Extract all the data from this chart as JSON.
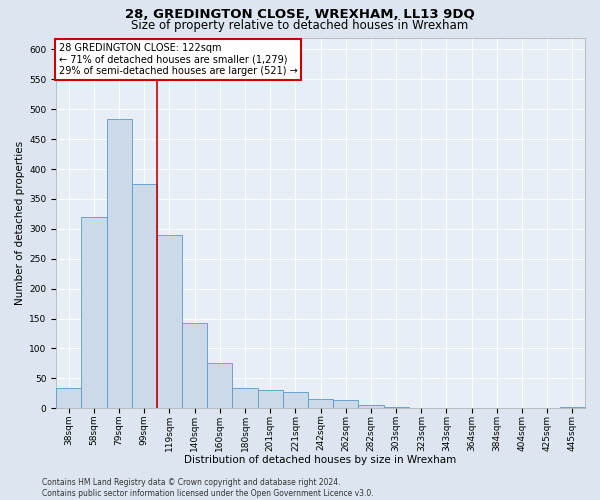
{
  "title": "28, GREDINGTON CLOSE, WREXHAM, LL13 9DQ",
  "subtitle": "Size of property relative to detached houses in Wrexham",
  "xlabel": "Distribution of detached houses by size in Wrexham",
  "ylabel": "Number of detached properties",
  "categories": [
    "38sqm",
    "58sqm",
    "79sqm",
    "99sqm",
    "119sqm",
    "140sqm",
    "160sqm",
    "180sqm",
    "201sqm",
    "221sqm",
    "242sqm",
    "262sqm",
    "282sqm",
    "303sqm",
    "323sqm",
    "343sqm",
    "364sqm",
    "384sqm",
    "404sqm",
    "425sqm",
    "445sqm"
  ],
  "values": [
    33,
    320,
    483,
    375,
    290,
    143,
    75,
    33,
    30,
    27,
    15,
    14,
    6,
    2,
    1,
    1,
    0,
    1,
    0,
    0,
    2
  ],
  "bar_color": "#ccd9e8",
  "bar_edge_color": "#5a9aca",
  "annotation_text": "28 GREDINGTON CLOSE: 122sqm\n← 71% of detached houses are smaller (1,279)\n29% of semi-detached houses are larger (521) →",
  "annotation_box_facecolor": "#ffffff",
  "annotation_box_edge_color": "#cc0000",
  "vline_color": "#cc0000",
  "footer_line1": "Contains HM Land Registry data © Crown copyright and database right 2024.",
  "footer_line2": "Contains public sector information licensed under the Open Government Licence v3.0.",
  "ylim": [
    0,
    620
  ],
  "yticks": [
    0,
    50,
    100,
    150,
    200,
    250,
    300,
    350,
    400,
    450,
    500,
    550,
    600
  ],
  "bg_color": "#dde6f0",
  "plot_bg_color": "#e8eef5",
  "grid_color": "#ffffff",
  "title_fontsize": 9.5,
  "subtitle_fontsize": 8.5,
  "tick_fontsize": 6.5,
  "ylabel_fontsize": 7.5,
  "xlabel_fontsize": 7.5,
  "annotation_fontsize": 7,
  "footer_fontsize": 5.5,
  "vline_x": 3.5
}
